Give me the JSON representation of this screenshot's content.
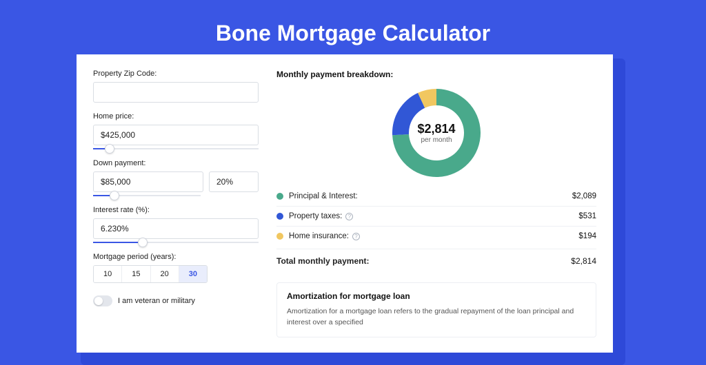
{
  "page": {
    "title": "Bone Mortgage Calculator",
    "background_color": "#3a56e4",
    "card_background": "#ffffff",
    "shadow_color": "#2e49d8"
  },
  "form": {
    "zip": {
      "label": "Property Zip Code:",
      "value": ""
    },
    "home_price": {
      "label": "Home price:",
      "value": "$425,000",
      "slider_pct": 10
    },
    "down_payment": {
      "label": "Down payment:",
      "amount": "$85,000",
      "percent": "20%",
      "slider_pct": 20
    },
    "interest_rate": {
      "label": "Interest rate (%):",
      "value": "6.230%",
      "slider_pct": 30
    },
    "period": {
      "label": "Mortgage period (years):",
      "options": [
        "10",
        "15",
        "20",
        "30"
      ],
      "active_index": 3
    },
    "veteran": {
      "label": "I am veteran or military",
      "on": false
    }
  },
  "breakdown": {
    "title": "Monthly payment breakdown:",
    "donut": {
      "amount": "$2,814",
      "sub": "per month",
      "segments": [
        {
          "name": "principal_interest",
          "pct": 74.2,
          "color": "#49a98b"
        },
        {
          "name": "property_taxes",
          "pct": 18.9,
          "color": "#3157d6"
        },
        {
          "name": "home_insurance",
          "pct": 6.9,
          "color": "#f1c760"
        }
      ],
      "inner_radius": 40,
      "outer_radius": 64
    },
    "items": [
      {
        "dot_color": "#49a98b",
        "label": "Principal & Interest:",
        "value": "$2,089",
        "info": false
      },
      {
        "dot_color": "#3157d6",
        "label": "Property taxes:",
        "value": "$531",
        "info": true
      },
      {
        "dot_color": "#f1c760",
        "label": "Home insurance:",
        "value": "$194",
        "info": true
      }
    ],
    "total": {
      "label": "Total monthly payment:",
      "value": "$2,814"
    }
  },
  "amort": {
    "title": "Amortization for mortgage loan",
    "text": "Amortization for a mortgage loan refers to the gradual repayment of the loan principal and interest over a specified"
  }
}
